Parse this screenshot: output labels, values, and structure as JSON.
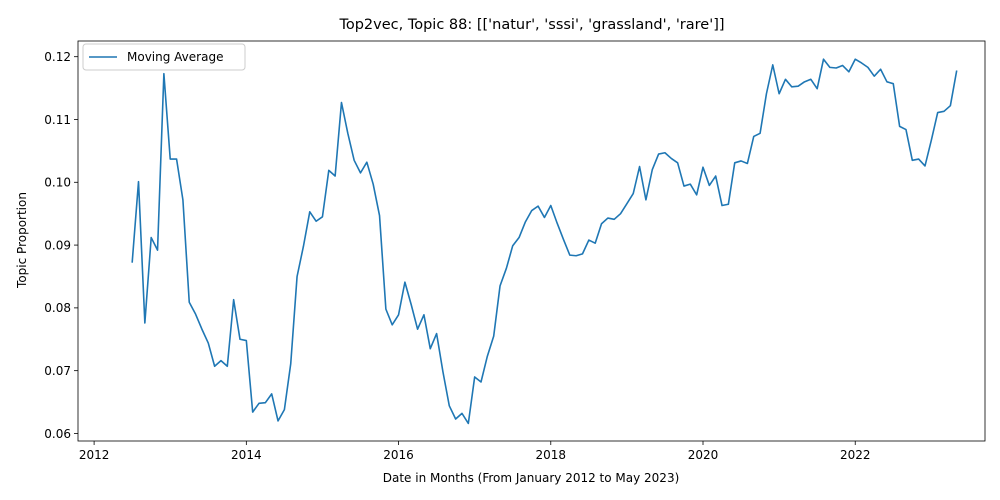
{
  "chart_data": {
    "type": "line",
    "title": "Top2vec, Topic 88: [['natur', 'sssi', 'grassland', 'rare']]",
    "xlabel": "Date in Months (From January 2012 to May 2023)",
    "ylabel": "Topic Proportion",
    "xlim": [
      "2011-10-15",
      "2023-09-15"
    ],
    "ylim": [
      0.0588,
      0.1225
    ],
    "x_ticks": [
      {
        "value": "2012-01-01",
        "label": "2012"
      },
      {
        "value": "2014-01-01",
        "label": "2014"
      },
      {
        "value": "2016-01-01",
        "label": "2016"
      },
      {
        "value": "2018-01-01",
        "label": "2018"
      },
      {
        "value": "2020-01-01",
        "label": "2020"
      },
      {
        "value": "2022-01-01",
        "label": "2022"
      }
    ],
    "y_ticks": [
      {
        "value": 0.06,
        "label": "0.06"
      },
      {
        "value": 0.07,
        "label": "0.07"
      },
      {
        "value": 0.08,
        "label": "0.08"
      },
      {
        "value": 0.09,
        "label": "0.09"
      },
      {
        "value": 0.1,
        "label": "0.10"
      },
      {
        "value": 0.11,
        "label": "0.11"
      },
      {
        "value": 0.12,
        "label": "0.12"
      }
    ],
    "legend": {
      "placement": "upper-left"
    },
    "grid": false,
    "series": [
      {
        "name": "Moving Average",
        "color": "#1f77b4",
        "x": [
          "2012-07",
          "2012-08",
          "2012-09",
          "2012-10",
          "2012-11",
          "2012-12",
          "2013-01",
          "2013-02",
          "2013-03",
          "2013-04",
          "2013-05",
          "2013-06",
          "2013-07",
          "2013-08",
          "2013-09",
          "2013-10",
          "2013-11",
          "2013-12",
          "2014-01",
          "2014-02",
          "2014-03",
          "2014-04",
          "2014-05",
          "2014-06",
          "2014-07",
          "2014-08",
          "2014-09",
          "2014-10",
          "2014-11",
          "2014-12",
          "2015-01",
          "2015-02",
          "2015-03",
          "2015-04",
          "2015-05",
          "2015-06",
          "2015-07",
          "2015-08",
          "2015-09",
          "2015-10",
          "2015-11",
          "2015-12",
          "2016-01",
          "2016-02",
          "2016-03",
          "2016-04",
          "2016-05",
          "2016-06",
          "2016-07",
          "2016-08",
          "2016-09",
          "2016-10",
          "2016-11",
          "2016-12",
          "2017-01",
          "2017-02",
          "2017-03",
          "2017-04",
          "2017-05",
          "2017-06",
          "2017-07",
          "2017-08",
          "2017-09",
          "2017-10",
          "2017-11",
          "2017-12",
          "2018-01",
          "2018-02",
          "2018-03",
          "2018-04",
          "2018-05",
          "2018-06",
          "2018-07",
          "2018-08",
          "2018-09",
          "2018-10",
          "2018-11",
          "2018-12",
          "2019-01",
          "2019-02",
          "2019-03",
          "2019-04",
          "2019-05",
          "2019-06",
          "2019-07",
          "2019-08",
          "2019-09",
          "2019-10",
          "2019-11",
          "2019-12",
          "2020-01",
          "2020-02",
          "2020-03",
          "2020-04",
          "2020-05",
          "2020-06",
          "2020-07",
          "2020-08",
          "2020-09",
          "2020-10",
          "2020-11",
          "2020-12",
          "2021-01",
          "2021-02",
          "2021-03",
          "2021-04",
          "2021-05",
          "2021-06",
          "2021-07",
          "2021-08",
          "2021-09",
          "2021-10",
          "2021-11",
          "2021-12",
          "2022-01",
          "2022-02",
          "2022-03",
          "2022-04",
          "2022-05",
          "2022-06",
          "2022-07",
          "2022-08",
          "2022-09",
          "2022-10",
          "2022-11",
          "2022-12",
          "2023-01",
          "2023-02",
          "2023-03",
          "2023-04",
          "2023-05"
        ],
        "values": [
          0.0872,
          0.1001,
          0.0776,
          0.0912,
          0.0892,
          0.1173,
          0.1037,
          0.1037,
          0.0972,
          0.0809,
          0.079,
          0.0766,
          0.0744,
          0.0707,
          0.0716,
          0.0707,
          0.0813,
          0.075,
          0.0748,
          0.0634,
          0.0648,
          0.0649,
          0.0663,
          0.062,
          0.0638,
          0.0711,
          0.085,
          0.0898,
          0.0953,
          0.0938,
          0.0945,
          0.1019,
          0.101,
          0.1127,
          0.1078,
          0.1035,
          0.1015,
          0.1032,
          0.0997,
          0.0947,
          0.0798,
          0.0773,
          0.0789,
          0.0841,
          0.0805,
          0.0766,
          0.0789,
          0.0735,
          0.0759,
          0.0698,
          0.0644,
          0.0623,
          0.0632,
          0.0616,
          0.069,
          0.0682,
          0.0723,
          0.0755,
          0.0835,
          0.0863,
          0.0899,
          0.0912,
          0.0937,
          0.0955,
          0.0962,
          0.0944,
          0.0963,
          0.0935,
          0.0909,
          0.0884,
          0.0883,
          0.0886,
          0.0908,
          0.0903,
          0.0934,
          0.0943,
          0.0941,
          0.095,
          0.0966,
          0.0982,
          0.1025,
          0.0972,
          0.102,
          0.1045,
          0.1047,
          0.1038,
          0.1031,
          0.0994,
          0.0997,
          0.098,
          0.1024,
          0.0995,
          0.101,
          0.0963,
          0.0965,
          0.1031,
          0.1034,
          0.103,
          0.1073,
          0.1078,
          0.1141,
          0.1187,
          0.1141,
          0.1164,
          0.1152,
          0.1153,
          0.116,
          0.1164,
          0.1149,
          0.1196,
          0.1183,
          0.1182,
          0.1186,
          0.1176,
          0.1196,
          0.119,
          0.1183,
          0.1169,
          0.118,
          0.116,
          0.1157,
          0.1089,
          0.1084,
          0.1035,
          0.1037,
          0.1026,
          0.1067,
          0.1111,
          0.1113,
          0.1122,
          0.1178
        ]
      }
    ]
  }
}
